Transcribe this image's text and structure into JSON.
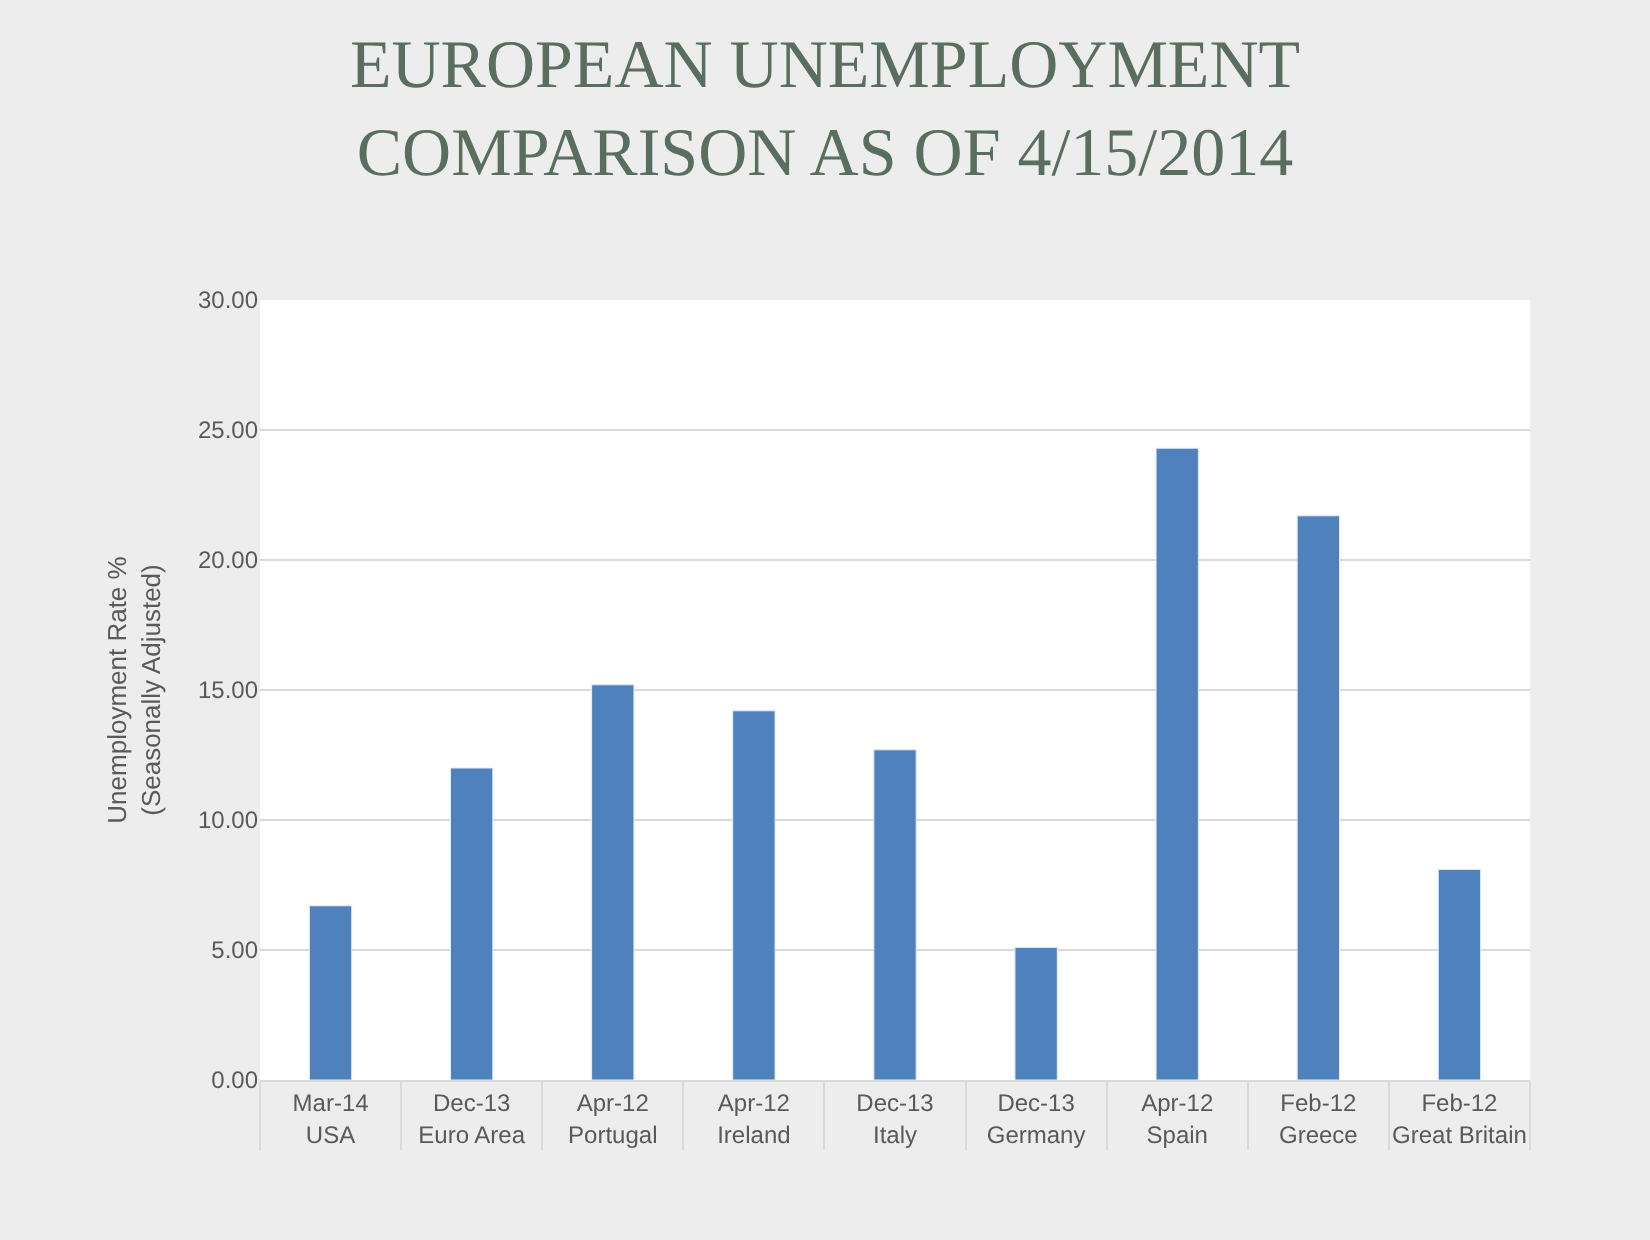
{
  "chart_data": {
    "type": "bar",
    "title": "EUROPEAN UNEMPLOYMENT\nCOMPARISON AS OF 4/15/2014",
    "ylabel": "Unemployment Rate %\n(Seasonally Adjusted)",
    "categories": [
      "Mar-14\nUSA",
      "Dec-13\nEuro Area",
      "Apr-12\nPortugal",
      "Apr-12\nIreland",
      "Dec-13\nItaly",
      "Dec-13\nGermany",
      "Apr-12\nSpain",
      "Feb-12\nGreece",
      "Feb-12\nGreat Britain"
    ],
    "values": [
      6.7,
      12.0,
      15.2,
      14.2,
      12.7,
      5.1,
      24.3,
      21.7,
      8.1
    ],
    "color": "#4f81bd",
    "ylim": [
      0,
      30
    ],
    "yticks": [
      {
        "value": 0,
        "label": "0.00"
      },
      {
        "value": 5,
        "label": "5.00"
      },
      {
        "value": 10,
        "label": "10.00"
      },
      {
        "value": 15,
        "label": "15.00"
      },
      {
        "value": 20,
        "label": "20.00"
      },
      {
        "value": 25,
        "label": "25.00"
      },
      {
        "value": 30,
        "label": "30.00"
      }
    ],
    "grid": "y"
  }
}
